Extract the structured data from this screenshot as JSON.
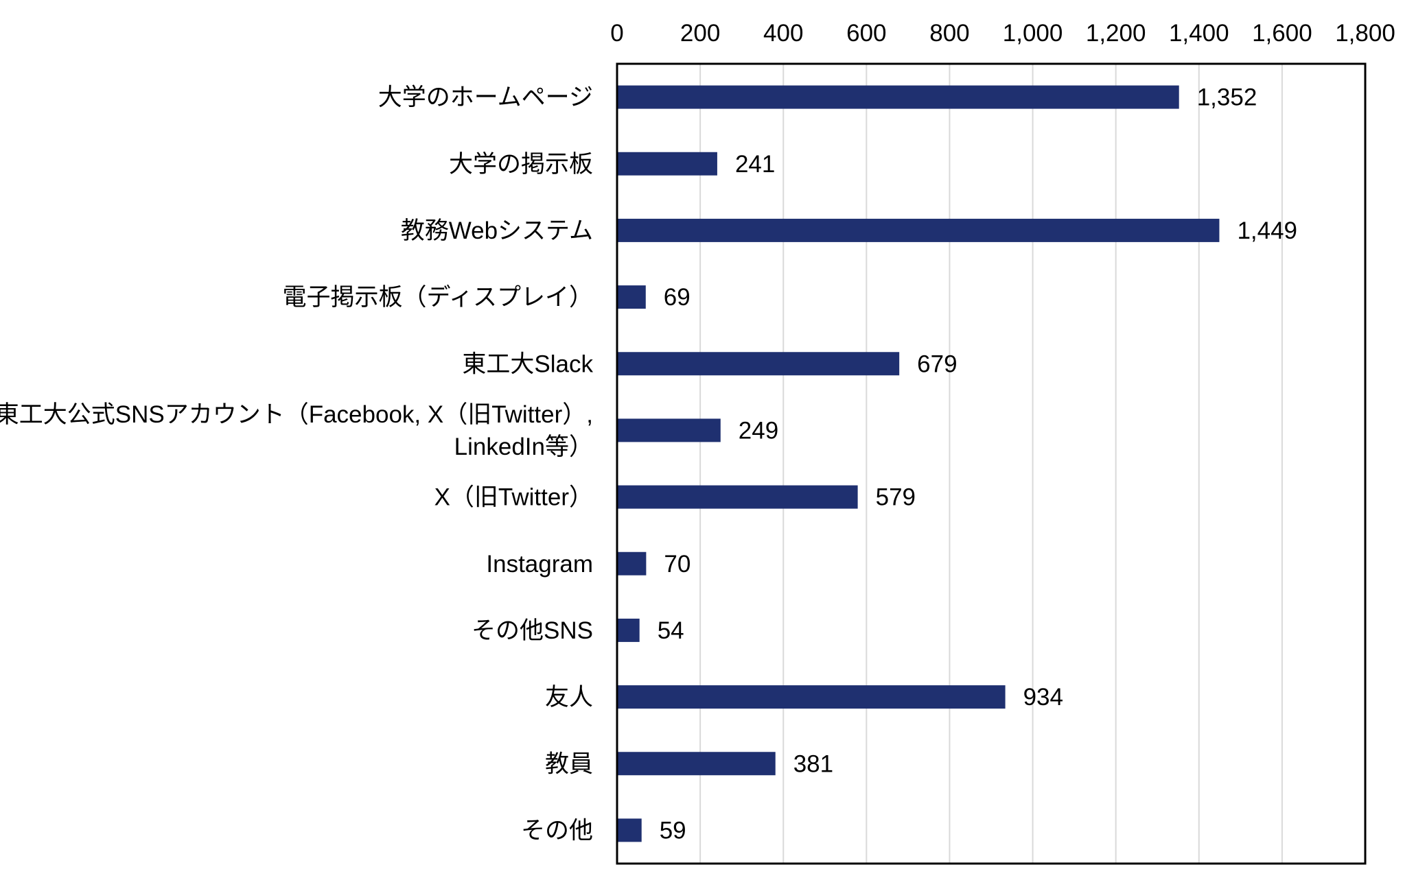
{
  "chart_data": {
    "type": "bar",
    "orientation": "horizontal",
    "title": "",
    "xlabel": "",
    "ylabel": "",
    "xlim": [
      0,
      1800
    ],
    "ticks": [
      0,
      200,
      400,
      600,
      800,
      1000,
      1200,
      1400,
      1600,
      1800
    ],
    "tick_labels": [
      "0",
      "200",
      "400",
      "600",
      "800",
      "1,000",
      "1,200",
      "1,400",
      "1,600",
      "1,800"
    ],
    "axis_position": "top",
    "grid": true,
    "legend": "none",
    "categories": [
      [
        "大学のホームページ"
      ],
      [
        "大学の掲示板"
      ],
      [
        "教務Webシステム"
      ],
      [
        "電子掲示板（ディスプレイ）"
      ],
      [
        "東工大Slack"
      ],
      [
        "東工大公式SNSアカウント（Facebook, X（旧Twitter）,",
        "LinkedIn等）"
      ],
      [
        "X（旧Twitter）"
      ],
      [
        "Instagram"
      ],
      [
        "その他SNS"
      ],
      [
        "友人"
      ],
      [
        "教員"
      ],
      [
        "その他"
      ]
    ],
    "values": [
      1352,
      241,
      1449,
      69,
      679,
      249,
      579,
      70,
      54,
      934,
      381,
      59
    ],
    "data_labels": [
      "1,352",
      "241",
      "1,449",
      "69",
      "679",
      "249",
      "579",
      "70",
      "54",
      "934",
      "381",
      "59"
    ],
    "colors": {
      "bar": "#1F3070",
      "grid": "#D9D9D9",
      "border": "#000000"
    }
  }
}
